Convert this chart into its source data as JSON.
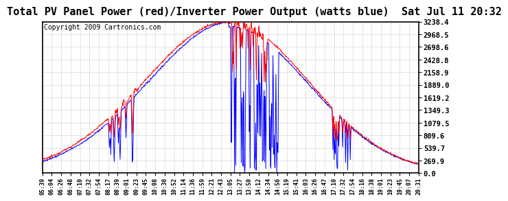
{
  "title": "Total PV Panel Power (red)/Inverter Power Output (watts blue)  Sat Jul 11 20:32",
  "copyright": "Copyright 2009 Cartronics.com",
  "yticks": [
    0.0,
    269.9,
    539.7,
    809.6,
    1079.5,
    1349.3,
    1619.2,
    1889.0,
    2158.9,
    2428.8,
    2698.6,
    2968.5,
    3238.4
  ],
  "ymax": 3238.4,
  "ymin": 0.0,
  "xtick_labels": [
    "05:39",
    "06:04",
    "06:26",
    "06:48",
    "07:10",
    "07:32",
    "07:54",
    "08:17",
    "08:39",
    "09:01",
    "09:23",
    "09:45",
    "10:08",
    "10:30",
    "10:52",
    "11:14",
    "11:36",
    "11:59",
    "12:21",
    "12:43",
    "13:05",
    "13:27",
    "13:50",
    "14:12",
    "14:34",
    "14:56",
    "15:19",
    "15:41",
    "16:03",
    "16:26",
    "16:47",
    "17:10",
    "17:32",
    "17:54",
    "18:16",
    "18:38",
    "19:01",
    "19:23",
    "19:45",
    "20:07",
    "20:31"
  ],
  "bg_color": "#ffffff",
  "grid_color": "#bbbbbb",
  "pv_color": "#ff0000",
  "inv_color": "#0000ff",
  "title_fontsize": 11,
  "copyright_fontsize": 7
}
